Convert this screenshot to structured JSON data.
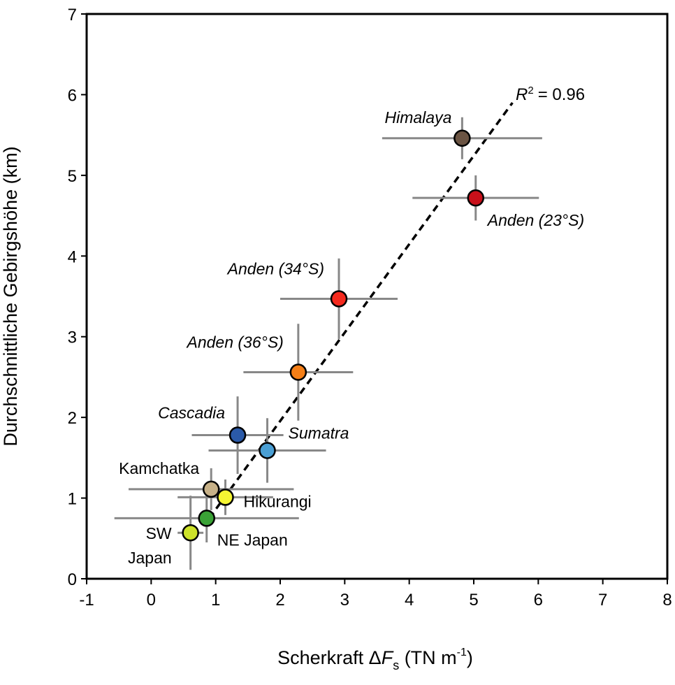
{
  "chart_data": {
    "type": "scatter",
    "xlabel": {
      "main": "Scherkraft Δ",
      "var": "F",
      "sub": "s",
      "unit": " (TN m",
      "exp": "-1",
      "end": ")"
    },
    "ylabel": "Durchschnittliche Gebirgshöhe (km)",
    "xlim": [
      -1,
      8
    ],
    "xticks": [
      -1,
      0,
      1,
      2,
      3,
      4,
      5,
      6,
      7,
      8
    ],
    "ylim": [
      0,
      7
    ],
    "yticks": [
      0,
      1,
      2,
      3,
      4,
      5,
      6,
      7
    ],
    "points": [
      {
        "label": [
          "Himalaya"
        ],
        "italic": true,
        "color": "#6b5443",
        "x": 4.82,
        "y": 5.46,
        "xerr": 1.24,
        "yerr": 0.26
      },
      {
        "label": [
          "Anden (23°S)"
        ],
        "italic": true,
        "color": "#c8101a",
        "x": 5.03,
        "y": 4.72,
        "xerr": 0.98,
        "yerr": 0.28
      },
      {
        "label": [
          "Anden (34°S)"
        ],
        "italic": true,
        "color": "#f52a1e",
        "x": 2.91,
        "y": 3.47,
        "xerr": 0.91,
        "yerr": 0.5
      },
      {
        "label": [
          "Anden (36°S)"
        ],
        "italic": true,
        "color": "#f57f17",
        "x": 2.28,
        "y": 2.56,
        "xerr": 0.85,
        "yerr": 0.6
      },
      {
        "label": [
          "Cascadia"
        ],
        "italic": true,
        "color": "#2b5aa8",
        "x": 1.34,
        "y": 1.78,
        "xerr": 0.71,
        "yerr": 0.48
      },
      {
        "label": [
          "Sumatra"
        ],
        "italic": true,
        "color": "#4a9fd4",
        "x": 1.8,
        "y": 1.59,
        "xerr": 0.91,
        "yerr": 0.4
      },
      {
        "label": [
          "Kamchatka"
        ],
        "italic": false,
        "color": "#c7b188",
        "x": 0.93,
        "y": 1.11,
        "xerr": 1.28,
        "yerr": 0.26
      },
      {
        "label": [
          "Hikurangi"
        ],
        "italic": false,
        "color": "#f5f533",
        "x": 1.15,
        "y": 1.01,
        "xerr": 0.74,
        "yerr": 0.22
      },
      {
        "label": [
          "NE Japan"
        ],
        "italic": false,
        "color": "#3aa236",
        "x": 0.86,
        "y": 0.75,
        "xerr": 1.43,
        "yerr": 0.3
      },
      {
        "label": [
          "SW",
          "Japan"
        ],
        "italic": false,
        "color": "#cde22a",
        "x": 0.61,
        "y": 0.57,
        "xerr": 0.2,
        "yerr": 0.46
      }
    ],
    "trendline": {
      "x": [
        0.9,
        5.6
      ],
      "y": [
        0.75,
        5.9
      ],
      "r_symbol": "R",
      "r_exp": "2",
      "r_text": "= 0.96"
    }
  }
}
